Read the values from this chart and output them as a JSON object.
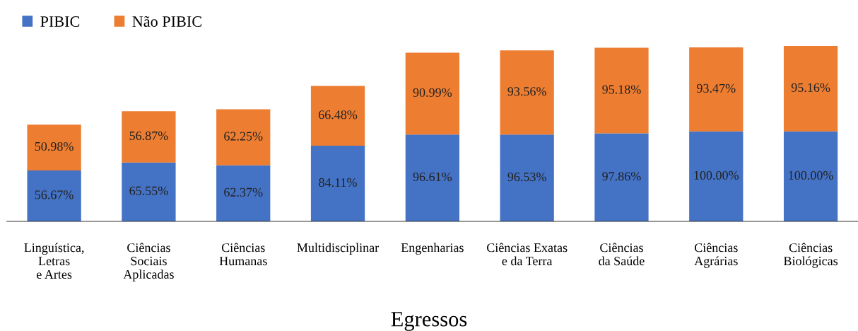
{
  "chart_data": {
    "type": "bar",
    "stacked": true,
    "xlabel": "Egressos",
    "legend": "top left",
    "data_labels": true,
    "grid": false,
    "categories": [
      "Linguística,\nLetras\ne Artes",
      "Ciências\nSociais\nAplicadas",
      "Ciências\nHumanas",
      "Multidisciplinar",
      "Engenharias",
      "Ciências Exatas\ne da Terra",
      "Ciências\nda Saúde",
      "Ciências\nAgrárias",
      "Ciências\nBiológicas"
    ],
    "series": [
      {
        "name": "PIBIC",
        "color": "#4472c4",
        "values": [
          56.67,
          65.55,
          62.37,
          84.11,
          96.61,
          96.53,
          97.86,
          100.0,
          100.0
        ],
        "value_labels": [
          "56.67%",
          "65.55%",
          "62.37%",
          "84.11%",
          "96.61%",
          "96.53%",
          "97.86%",
          "100.00%",
          "100.00%"
        ]
      },
      {
        "name": "Não PIBIC",
        "color": "#ed7d31",
        "values": [
          50.98,
          56.87,
          62.25,
          66.48,
          90.99,
          93.56,
          95.18,
          93.47,
          95.16
        ],
        "value_labels": [
          "50.98%",
          "56.87%",
          "62.25%",
          "66.48%",
          "90.99%",
          "93.56%",
          "95.18%",
          "93.47%",
          "95.16%"
        ]
      }
    ]
  }
}
